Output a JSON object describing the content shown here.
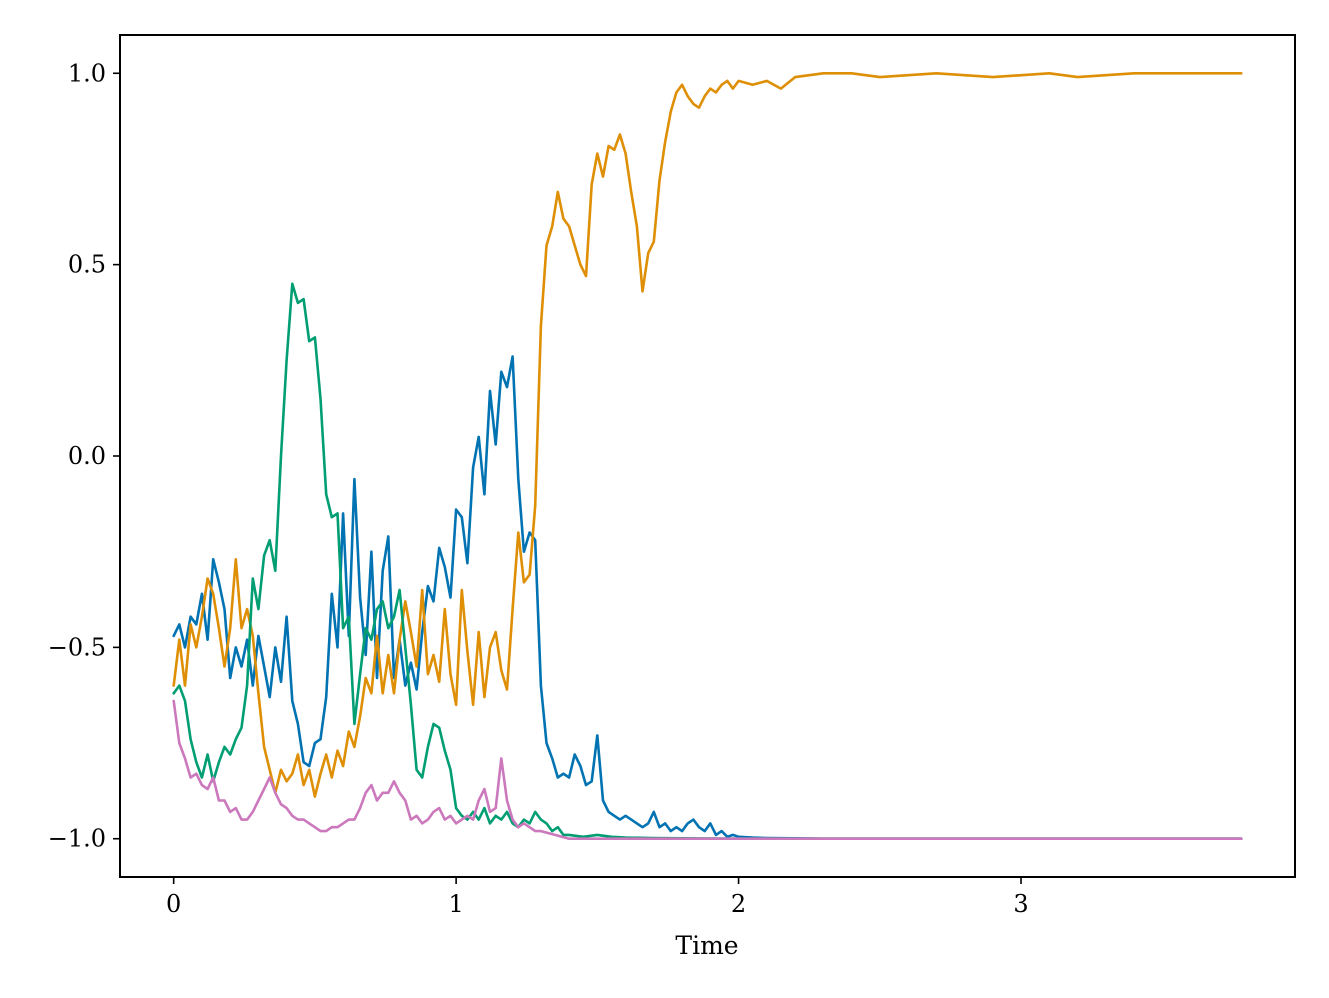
{
  "chart_data": {
    "type": "line",
    "title": "",
    "xlabel": "Time",
    "ylabel": "",
    "xlim": [
      -0.19,
      3.97
    ],
    "ylim": [
      -1.1,
      1.1
    ],
    "xticks": [
      0,
      1,
      2,
      3
    ],
    "xtick_labels": [
      "0",
      "1",
      "2",
      "3"
    ],
    "yticks": [
      -1.0,
      -0.5,
      0.0,
      0.5,
      1.0
    ],
    "ytick_labels": [
      "−1.0",
      "−0.5",
      "0.0",
      "0.5",
      "1.0"
    ],
    "grid": false,
    "legend": "none",
    "series": [
      {
        "color": "#0173b2",
        "x": [
          0.0,
          0.02,
          0.04,
          0.06,
          0.08,
          0.1,
          0.12,
          0.14,
          0.16,
          0.18,
          0.2,
          0.22,
          0.24,
          0.26,
          0.28,
          0.3,
          0.32,
          0.34,
          0.36,
          0.38,
          0.4,
          0.42,
          0.44,
          0.46,
          0.48,
          0.5,
          0.52,
          0.54,
          0.56,
          0.58,
          0.6,
          0.62,
          0.64,
          0.66,
          0.68,
          0.7,
          0.72,
          0.74,
          0.76,
          0.78,
          0.8,
          0.82,
          0.84,
          0.86,
          0.88,
          0.9,
          0.92,
          0.94,
          0.96,
          0.98,
          1.0,
          1.02,
          1.04,
          1.06,
          1.08,
          1.1,
          1.12,
          1.14,
          1.16,
          1.18,
          1.2,
          1.22,
          1.24,
          1.26,
          1.28,
          1.3,
          1.32,
          1.34,
          1.36,
          1.38,
          1.4,
          1.42,
          1.44,
          1.46,
          1.48,
          1.5,
          1.52,
          1.54,
          1.56,
          1.58,
          1.6,
          1.62,
          1.64,
          1.66,
          1.68,
          1.7,
          1.72,
          1.74,
          1.76,
          1.78,
          1.8,
          1.82,
          1.84,
          1.86,
          1.88,
          1.9,
          1.92,
          1.94,
          1.96,
          1.98,
          2.0,
          2.05,
          2.1,
          2.2,
          2.3,
          2.5,
          3.0,
          3.78
        ],
        "y": [
          -0.47,
          -0.44,
          -0.5,
          -0.42,
          -0.44,
          -0.36,
          -0.48,
          -0.27,
          -0.33,
          -0.4,
          -0.58,
          -0.5,
          -0.55,
          -0.48,
          -0.6,
          -0.47,
          -0.55,
          -0.63,
          -0.5,
          -0.59,
          -0.42,
          -0.64,
          -0.7,
          -0.8,
          -0.81,
          -0.75,
          -0.74,
          -0.63,
          -0.36,
          -0.5,
          -0.15,
          -0.47,
          -0.06,
          -0.37,
          -0.52,
          -0.25,
          -0.58,
          -0.3,
          -0.21,
          -0.58,
          -0.48,
          -0.6,
          -0.54,
          -0.61,
          -0.46,
          -0.34,
          -0.38,
          -0.24,
          -0.29,
          -0.37,
          -0.14,
          -0.16,
          -0.28,
          -0.03,
          0.05,
          -0.1,
          0.17,
          0.03,
          0.22,
          0.18,
          0.26,
          -0.06,
          -0.25,
          -0.2,
          -0.22,
          -0.6,
          -0.75,
          -0.79,
          -0.84,
          -0.83,
          -0.84,
          -0.78,
          -0.81,
          -0.86,
          -0.85,
          -0.73,
          -0.9,
          -0.93,
          -0.94,
          -0.95,
          -0.94,
          -0.95,
          -0.96,
          -0.97,
          -0.96,
          -0.93,
          -0.97,
          -0.96,
          -0.98,
          -0.97,
          -0.98,
          -0.96,
          -0.95,
          -0.97,
          -0.98,
          -0.96,
          -0.99,
          -0.98,
          -0.995,
          -0.99,
          -0.995,
          -0.997,
          -0.998,
          -0.999,
          -1.0,
          -1.0,
          -1.0,
          -1.0
        ]
      },
      {
        "color": "#de8f05",
        "x": [
          0.0,
          0.02,
          0.04,
          0.06,
          0.08,
          0.1,
          0.12,
          0.14,
          0.16,
          0.18,
          0.2,
          0.22,
          0.24,
          0.26,
          0.28,
          0.3,
          0.32,
          0.34,
          0.36,
          0.38,
          0.4,
          0.42,
          0.44,
          0.46,
          0.48,
          0.5,
          0.52,
          0.54,
          0.56,
          0.58,
          0.6,
          0.62,
          0.64,
          0.66,
          0.68,
          0.7,
          0.72,
          0.74,
          0.76,
          0.78,
          0.8,
          0.82,
          0.84,
          0.86,
          0.88,
          0.9,
          0.92,
          0.94,
          0.96,
          0.98,
          1.0,
          1.02,
          1.04,
          1.06,
          1.08,
          1.1,
          1.12,
          1.14,
          1.16,
          1.18,
          1.2,
          1.22,
          1.24,
          1.26,
          1.28,
          1.3,
          1.32,
          1.34,
          1.36,
          1.38,
          1.4,
          1.42,
          1.44,
          1.46,
          1.48,
          1.5,
          1.52,
          1.54,
          1.56,
          1.58,
          1.6,
          1.62,
          1.64,
          1.66,
          1.68,
          1.7,
          1.72,
          1.74,
          1.76,
          1.78,
          1.8,
          1.82,
          1.84,
          1.86,
          1.88,
          1.9,
          1.92,
          1.94,
          1.96,
          1.98,
          2.0,
          2.05,
          2.1,
          2.15,
          2.2,
          2.3,
          2.4,
          2.5,
          2.7,
          2.9,
          3.1,
          3.2,
          3.4,
          3.6,
          3.78
        ],
        "y": [
          -0.6,
          -0.48,
          -0.6,
          -0.44,
          -0.5,
          -0.42,
          -0.32,
          -0.36,
          -0.45,
          -0.55,
          -0.45,
          -0.27,
          -0.45,
          -0.4,
          -0.47,
          -0.62,
          -0.76,
          -0.82,
          -0.88,
          -0.82,
          -0.85,
          -0.83,
          -0.78,
          -0.86,
          -0.82,
          -0.89,
          -0.83,
          -0.78,
          -0.84,
          -0.77,
          -0.81,
          -0.72,
          -0.76,
          -0.68,
          -0.58,
          -0.62,
          -0.47,
          -0.62,
          -0.52,
          -0.62,
          -0.48,
          -0.38,
          -0.46,
          -0.55,
          -0.35,
          -0.57,
          -0.52,
          -0.59,
          -0.4,
          -0.57,
          -0.65,
          -0.35,
          -0.51,
          -0.65,
          -0.46,
          -0.63,
          -0.5,
          -0.46,
          -0.56,
          -0.61,
          -0.4,
          -0.2,
          -0.33,
          -0.31,
          -0.13,
          0.34,
          0.55,
          0.6,
          0.69,
          0.62,
          0.6,
          0.55,
          0.5,
          0.47,
          0.71,
          0.79,
          0.73,
          0.81,
          0.8,
          0.84,
          0.79,
          0.69,
          0.6,
          0.43,
          0.53,
          0.56,
          0.72,
          0.82,
          0.9,
          0.95,
          0.97,
          0.94,
          0.92,
          0.91,
          0.94,
          0.96,
          0.95,
          0.97,
          0.98,
          0.96,
          0.98,
          0.97,
          0.98,
          0.96,
          0.99,
          1.0,
          1.0,
          0.99,
          1.0,
          0.99,
          1.0,
          0.99,
          1.0,
          1.0,
          1.0
        ]
      },
      {
        "color": "#029e73",
        "x": [
          0.0,
          0.02,
          0.04,
          0.06,
          0.08,
          0.1,
          0.12,
          0.14,
          0.16,
          0.18,
          0.2,
          0.22,
          0.24,
          0.26,
          0.28,
          0.3,
          0.32,
          0.34,
          0.36,
          0.38,
          0.4,
          0.42,
          0.44,
          0.46,
          0.48,
          0.5,
          0.52,
          0.54,
          0.56,
          0.58,
          0.6,
          0.62,
          0.64,
          0.66,
          0.68,
          0.7,
          0.72,
          0.74,
          0.76,
          0.78,
          0.8,
          0.82,
          0.84,
          0.86,
          0.88,
          0.9,
          0.92,
          0.94,
          0.96,
          0.98,
          1.0,
          1.02,
          1.04,
          1.06,
          1.08,
          1.1,
          1.12,
          1.14,
          1.16,
          1.18,
          1.2,
          1.22,
          1.24,
          1.26,
          1.28,
          1.3,
          1.32,
          1.34,
          1.36,
          1.38,
          1.4,
          1.45,
          1.5,
          1.55,
          1.6,
          1.7,
          1.8,
          2.0,
          2.5,
          3.0,
          3.78
        ],
        "y": [
          -0.62,
          -0.6,
          -0.64,
          -0.74,
          -0.8,
          -0.84,
          -0.78,
          -0.85,
          -0.8,
          -0.76,
          -0.78,
          -0.74,
          -0.71,
          -0.6,
          -0.32,
          -0.4,
          -0.26,
          -0.22,
          -0.3,
          0.0,
          0.25,
          0.45,
          0.4,
          0.41,
          0.3,
          0.31,
          0.15,
          -0.1,
          -0.16,
          -0.15,
          -0.45,
          -0.42,
          -0.7,
          -0.57,
          -0.45,
          -0.48,
          -0.4,
          -0.38,
          -0.45,
          -0.42,
          -0.35,
          -0.5,
          -0.65,
          -0.82,
          -0.84,
          -0.76,
          -0.7,
          -0.71,
          -0.77,
          -0.82,
          -0.92,
          -0.94,
          -0.95,
          -0.93,
          -0.95,
          -0.92,
          -0.96,
          -0.94,
          -0.95,
          -0.93,
          -0.96,
          -0.97,
          -0.95,
          -0.96,
          -0.93,
          -0.95,
          -0.96,
          -0.98,
          -0.97,
          -0.99,
          -0.99,
          -0.995,
          -0.99,
          -0.995,
          -0.997,
          -0.998,
          -0.999,
          -1.0,
          -1.0,
          -1.0,
          -1.0
        ]
      },
      {
        "color": "#cc78bc",
        "x": [
          0.0,
          0.02,
          0.04,
          0.06,
          0.08,
          0.1,
          0.12,
          0.14,
          0.16,
          0.18,
          0.2,
          0.22,
          0.24,
          0.26,
          0.28,
          0.3,
          0.32,
          0.34,
          0.36,
          0.38,
          0.4,
          0.42,
          0.44,
          0.46,
          0.48,
          0.5,
          0.52,
          0.54,
          0.56,
          0.58,
          0.6,
          0.62,
          0.64,
          0.66,
          0.68,
          0.7,
          0.72,
          0.74,
          0.76,
          0.78,
          0.8,
          0.82,
          0.84,
          0.86,
          0.88,
          0.9,
          0.92,
          0.94,
          0.96,
          0.98,
          1.0,
          1.02,
          1.04,
          1.06,
          1.08,
          1.1,
          1.12,
          1.14,
          1.16,
          1.18,
          1.2,
          1.22,
          1.24,
          1.26,
          1.28,
          1.3,
          1.35,
          1.4,
          1.5,
          1.7,
          2.0,
          2.5,
          3.0,
          3.78
        ],
        "y": [
          -0.64,
          -0.75,
          -0.79,
          -0.84,
          -0.83,
          -0.86,
          -0.87,
          -0.84,
          -0.9,
          -0.9,
          -0.93,
          -0.92,
          -0.95,
          -0.95,
          -0.93,
          -0.9,
          -0.87,
          -0.84,
          -0.88,
          -0.91,
          -0.92,
          -0.94,
          -0.95,
          -0.95,
          -0.96,
          -0.97,
          -0.98,
          -0.98,
          -0.97,
          -0.97,
          -0.96,
          -0.95,
          -0.95,
          -0.92,
          -0.88,
          -0.86,
          -0.9,
          -0.88,
          -0.88,
          -0.85,
          -0.88,
          -0.9,
          -0.95,
          -0.94,
          -0.96,
          -0.95,
          -0.93,
          -0.92,
          -0.95,
          -0.94,
          -0.96,
          -0.95,
          -0.94,
          -0.95,
          -0.9,
          -0.87,
          -0.93,
          -0.92,
          -0.79,
          -0.9,
          -0.95,
          -0.97,
          -0.96,
          -0.97,
          -0.98,
          -0.98,
          -0.99,
          -1.0,
          -1.0,
          -1.0,
          -1.0,
          -1.0,
          -1.0,
          -1.0
        ]
      }
    ]
  }
}
